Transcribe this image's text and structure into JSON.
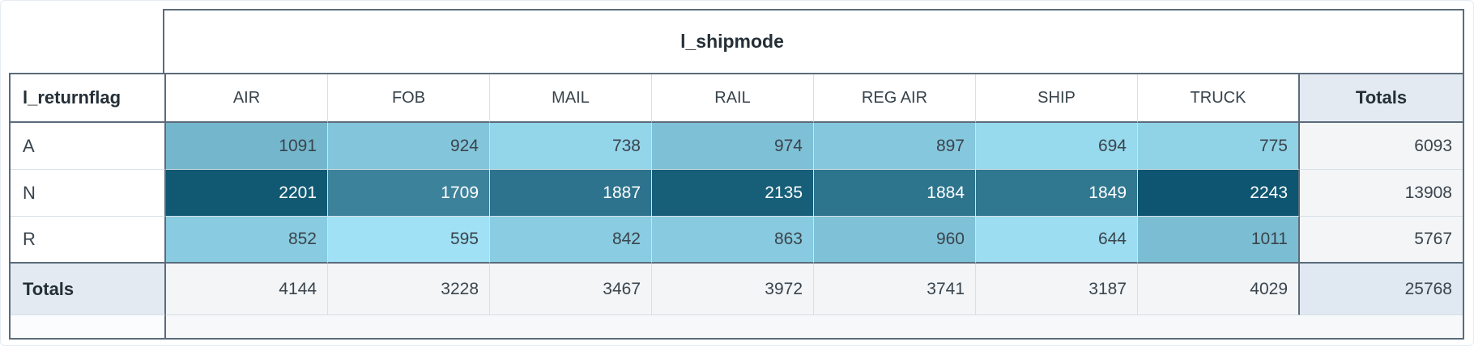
{
  "chart_data": {
    "type": "heatmap",
    "x_label": "l_shipmode",
    "y_label": "l_returnflag",
    "totals_label": "Totals",
    "columns": [
      "AIR",
      "FOB",
      "MAIL",
      "RAIL",
      "REG AIR",
      "SHIP",
      "TRUCK"
    ],
    "rows": [
      "A",
      "N",
      "R"
    ],
    "values": [
      [
        1091,
        924,
        738,
        974,
        897,
        694,
        775
      ],
      [
        2201,
        1709,
        1887,
        2135,
        1884,
        1849,
        2243
      ],
      [
        852,
        595,
        842,
        863,
        960,
        644,
        1011
      ]
    ],
    "row_totals": [
      6093,
      13908,
      5767
    ],
    "column_totals": [
      4144,
      3228,
      3467,
      3972,
      3741,
      3187,
      4029
    ],
    "grand_total": 25768,
    "color_scale": {
      "min": 595,
      "max": 2243,
      "light": "#A0E1F5",
      "dark": "#0D5570"
    },
    "cell_colors": [
      [
        "#74B7CD",
        "#83C5DA",
        "#93D5E9",
        "#7EC1D6",
        "#85C7DD",
        "#97D9ED",
        "#90D2E6"
      ],
      [
        "#115973",
        "#3D829B",
        "#2D738D",
        "#175E79",
        "#2D748D",
        "#307790",
        "#0D5570"
      ],
      [
        "#89CBE0",
        "#A0E1F5",
        "#8ACCE1",
        "#88CADF",
        "#7FC2D8",
        "#9CDDF1",
        "#7BBED3"
      ]
    ]
  },
  "theme": {
    "border_dark": "#5b6b7b",
    "border_light": "#d6e0e6",
    "header_text": "#36424b",
    "number_text": "#3a444c",
    "bold_text": "#242f37",
    "totals_header_bg": "#e3eaf2",
    "totals_cell_bg": "#f3f5f7",
    "grand_total_bg": "#e0e8f1",
    "footer_left_bg": "#fbfcfd",
    "footer_right_bg": "#f6f8fa",
    "page_border": "#e6ecf2",
    "heatmap_light_text_threshold": 128
  }
}
